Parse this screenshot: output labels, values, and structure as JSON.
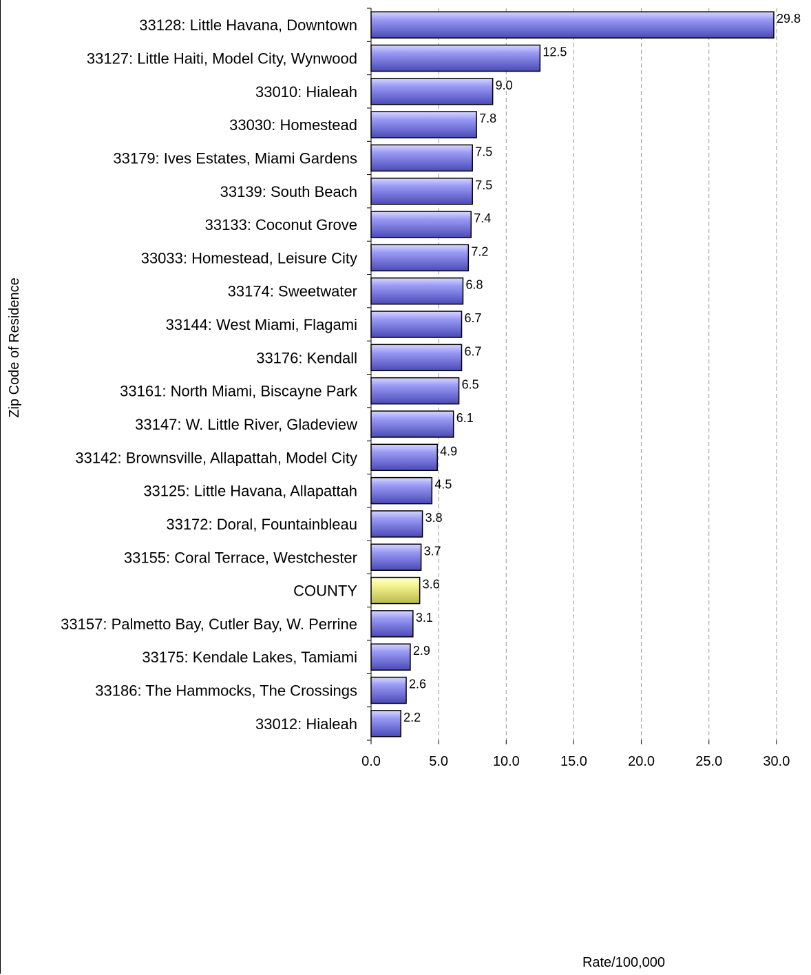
{
  "chart_data": {
    "type": "bar",
    "orientation": "horizontal",
    "title": "",
    "xlabel": "Rate/100,000",
    "ylabel": "Zip Code of Residence",
    "xlim": [
      0,
      30
    ],
    "xticks": [
      "0.0",
      "5.0",
      "10.0",
      "15.0",
      "20.0",
      "25.0",
      "30.0"
    ],
    "grid": "vertical dashed",
    "legend": "none",
    "colors": {
      "bar": "#8080f0",
      "highlight": "#f0f080",
      "gridline": "#999999"
    },
    "categories": [
      "33128:  Little Havana, Downtown",
      "33127:  Little Haiti, Model City, Wynwood",
      "33010:  Hialeah",
      "33030:  Homestead",
      "33179:  Ives Estates, Miami Gardens",
      "33139:  South Beach",
      "33133:  Coconut Grove",
      "33033:  Homestead, Leisure City",
      "33174:  Sweetwater",
      "33144:  West Miami, Flagami",
      "33176:  Kendall",
      "33161:  North Miami, Biscayne Park",
      "33147:  W. Little River, Gladeview",
      "33142:  Brownsville, Allapattah, Model City",
      "33125:  Little Havana, Allapattah",
      "33172:  Doral, Fountainbleau",
      "33155:  Coral Terrace, Westchester",
      "COUNTY",
      "33157:  Palmetto Bay, Cutler Bay, W. Perrine",
      "33175:  Kendale Lakes, Tamiami",
      "33186:  The Hammocks, The Crossings",
      "33012:  Hialeah"
    ],
    "values": [
      29.8,
      12.5,
      9.0,
      7.8,
      7.5,
      7.5,
      7.4,
      7.2,
      6.8,
      6.7,
      6.7,
      6.5,
      6.1,
      4.9,
      4.5,
      3.8,
      3.7,
      3.6,
      3.1,
      2.9,
      2.6,
      2.2
    ],
    "value_labels": [
      "29.8",
      "12.5",
      "9.0",
      "7.8",
      "7.5",
      "7.5",
      "7.4",
      "7.2",
      "6.8",
      "6.7",
      "6.7",
      "6.5",
      "6.1",
      "4.9",
      "4.5",
      "3.8",
      "3.7",
      "3.6",
      "3.1",
      "2.9",
      "2.6",
      "2.2"
    ],
    "highlight_category": "COUNTY"
  }
}
